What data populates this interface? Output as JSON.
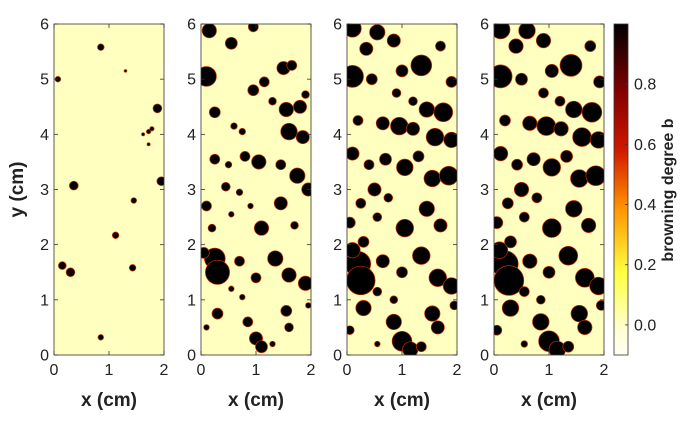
{
  "chart_data": {
    "type": "heatmap",
    "colorbar": {
      "label": "browning degree b",
      "range": [
        -0.1,
        1.0
      ],
      "ticks": [
        0.0,
        0.2,
        0.4,
        0.6,
        0.8
      ],
      "tick_labels": [
        "0.0",
        "0.2",
        "0.4",
        "0.6",
        "0.8"
      ],
      "colors": [
        "#fffff4",
        "#ffff40",
        "#ff9000",
        "#d01800",
        "#800000",
        "#000000"
      ]
    },
    "background_value": 0.0,
    "spot_value": 1.0,
    "panels": [
      {
        "xlabel": "x (cm)",
        "ylabel": "y (cm)",
        "xlim": [
          0,
          2
        ],
        "ylim": [
          0,
          6
        ],
        "xticks": [
          "0",
          "1",
          "2"
        ],
        "yticks": [
          "0",
          "1",
          "2",
          "3",
          "4",
          "5",
          "6"
        ],
        "spots": [
          [
            0.85,
            5.58,
            0.06
          ],
          [
            0.07,
            5.0,
            0.05
          ],
          [
            1.3,
            5.15,
            0.02
          ],
          [
            1.88,
            4.47,
            0.08
          ],
          [
            1.72,
            4.05,
            0.04
          ],
          [
            1.78,
            4.1,
            0.04
          ],
          [
            1.62,
            4.0,
            0.03
          ],
          [
            1.72,
            3.82,
            0.03
          ],
          [
            0.36,
            3.07,
            0.08
          ],
          [
            1.95,
            3.15,
            0.08
          ],
          [
            1.45,
            2.8,
            0.05
          ],
          [
            1.12,
            2.17,
            0.06
          ],
          [
            0.15,
            1.62,
            0.07
          ],
          [
            0.3,
            1.5,
            0.08
          ],
          [
            1.43,
            1.58,
            0.06
          ],
          [
            0.85,
            0.32,
            0.05
          ]
        ]
      },
      {
        "xlabel": "x (cm)",
        "ylabel": "",
        "xlim": [
          0,
          2
        ],
        "ylim": [
          0,
          6
        ],
        "xticks": [
          "0",
          "1",
          "2"
        ],
        "yticks": [
          "0",
          "1",
          "2",
          "3",
          "4",
          "5",
          "6"
        ],
        "spots": [
          [
            0.15,
            5.88,
            0.13
          ],
          [
            0.1,
            5.05,
            0.18
          ],
          [
            0.55,
            5.65,
            0.11
          ],
          [
            0.95,
            5.95,
            0.09
          ],
          [
            1.15,
            4.95,
            0.09
          ],
          [
            1.5,
            5.2,
            0.12
          ],
          [
            1.65,
            5.25,
            0.09
          ],
          [
            1.3,
            4.6,
            0.07
          ],
          [
            1.55,
            4.45,
            0.13
          ],
          [
            1.8,
            4.5,
            0.12
          ],
          [
            1.9,
            4.72,
            0.07
          ],
          [
            1.6,
            4.05,
            0.15
          ],
          [
            1.85,
            3.95,
            0.12
          ],
          [
            0.25,
            4.4,
            0.1
          ],
          [
            0.6,
            4.15,
            0.06
          ],
          [
            0.75,
            4.05,
            0.06
          ],
          [
            0.95,
            4.8,
            0.1
          ],
          [
            0.25,
            3.55,
            0.09
          ],
          [
            0.5,
            3.45,
            0.06
          ],
          [
            0.8,
            3.6,
            0.09
          ],
          [
            1.05,
            3.5,
            0.13
          ],
          [
            1.45,
            3.45,
            0.09
          ],
          [
            1.75,
            3.25,
            0.14
          ],
          [
            1.95,
            3.0,
            0.12
          ],
          [
            0.45,
            3.05,
            0.08
          ],
          [
            0.7,
            2.95,
            0.06
          ],
          [
            0.1,
            2.7,
            0.09
          ],
          [
            0.2,
            2.3,
            0.07
          ],
          [
            0.55,
            2.55,
            0.05
          ],
          [
            0.9,
            2.7,
            0.05
          ],
          [
            1.1,
            2.3,
            0.13
          ],
          [
            1.45,
            2.75,
            0.12
          ],
          [
            1.7,
            2.35,
            0.07
          ],
          [
            0.25,
            1.75,
            0.19
          ],
          [
            0.3,
            1.5,
            0.22
          ],
          [
            0.05,
            1.85,
            0.1
          ],
          [
            0.7,
            1.7,
            0.09
          ],
          [
            1.0,
            1.4,
            0.09
          ],
          [
            1.35,
            1.75,
            0.14
          ],
          [
            1.6,
            1.45,
            0.13
          ],
          [
            1.9,
            1.3,
            0.13
          ],
          [
            0.75,
            1.05,
            0.05
          ],
          [
            0.55,
            1.2,
            0.05
          ],
          [
            0.3,
            0.75,
            0.1
          ],
          [
            0.85,
            0.6,
            0.09
          ],
          [
            1.0,
            0.3,
            0.12
          ],
          [
            1.1,
            0.15,
            0.11
          ],
          [
            1.55,
            0.8,
            0.1
          ],
          [
            1.6,
            0.5,
            0.08
          ],
          [
            1.3,
            0.2,
            0.05
          ],
          [
            0.1,
            0.5,
            0.05
          ],
          [
            1.95,
            0.9,
            0.05
          ]
        ]
      },
      {
        "xlabel": "x (cm)",
        "ylabel": "",
        "xlim": [
          0,
          2
        ],
        "ylim": [
          0,
          6
        ],
        "xticks": [
          "0",
          "1",
          "2"
        ],
        "yticks": [
          "0",
          "1",
          "2",
          "3",
          "4",
          "5",
          "6"
        ],
        "spots": [
          [
            0.1,
            5.92,
            0.16
          ],
          [
            0.35,
            5.55,
            0.12
          ],
          [
            0.55,
            5.85,
            0.14
          ],
          [
            0.85,
            5.7,
            0.12
          ],
          [
            0.1,
            5.05,
            0.2
          ],
          [
            0.45,
            5.0,
            0.1
          ],
          [
            1.0,
            5.15,
            0.11
          ],
          [
            1.35,
            5.25,
            0.19
          ],
          [
            1.7,
            5.6,
            0.09
          ],
          [
            1.9,
            4.95,
            0.1
          ],
          [
            0.9,
            4.75,
            0.08
          ],
          [
            1.2,
            4.6,
            0.08
          ],
          [
            1.45,
            4.45,
            0.14
          ],
          [
            1.75,
            4.4,
            0.17
          ],
          [
            0.65,
            4.2,
            0.12
          ],
          [
            0.95,
            4.15,
            0.16
          ],
          [
            1.2,
            4.1,
            0.12
          ],
          [
            1.6,
            3.95,
            0.16
          ],
          [
            1.9,
            3.9,
            0.14
          ],
          [
            0.2,
            4.25,
            0.09
          ],
          [
            0.1,
            3.65,
            0.12
          ],
          [
            0.4,
            3.45,
            0.09
          ],
          [
            0.7,
            3.55,
            0.11
          ],
          [
            1.05,
            3.4,
            0.15
          ],
          [
            1.3,
            3.6,
            0.1
          ],
          [
            1.55,
            3.2,
            0.15
          ],
          [
            1.85,
            3.25,
            0.17
          ],
          [
            0.5,
            3.0,
            0.12
          ],
          [
            0.75,
            2.85,
            0.08
          ],
          [
            0.25,
            2.75,
            0.09
          ],
          [
            0.05,
            2.4,
            0.1
          ],
          [
            1.05,
            2.3,
            0.16
          ],
          [
            1.45,
            2.65,
            0.14
          ],
          [
            1.7,
            2.35,
            0.12
          ],
          [
            0.55,
            2.5,
            0.08
          ],
          [
            0.3,
            2.05,
            0.1
          ],
          [
            0.2,
            1.65,
            0.23
          ],
          [
            0.25,
            1.35,
            0.26
          ],
          [
            0.1,
            1.9,
            0.14
          ],
          [
            0.65,
            1.7,
            0.12
          ],
          [
            1.0,
            1.5,
            0.1
          ],
          [
            1.35,
            1.8,
            0.16
          ],
          [
            1.65,
            1.4,
            0.16
          ],
          [
            1.9,
            1.25,
            0.15
          ],
          [
            0.55,
            1.15,
            0.08
          ],
          [
            0.85,
            1.0,
            0.07
          ],
          [
            0.3,
            0.85,
            0.14
          ],
          [
            0.85,
            0.6,
            0.14
          ],
          [
            1.0,
            0.25,
            0.18
          ],
          [
            1.15,
            0.1,
            0.14
          ],
          [
            1.55,
            0.75,
            0.14
          ],
          [
            1.65,
            0.5,
            0.12
          ],
          [
            1.35,
            0.15,
            0.09
          ],
          [
            0.05,
            0.45,
            0.08
          ],
          [
            1.95,
            0.9,
            0.08
          ],
          [
            0.55,
            0.2,
            0.05
          ]
        ]
      },
      {
        "xlabel": "x (cm)",
        "ylabel": "",
        "xlim": [
          0,
          2
        ],
        "ylim": [
          0,
          6
        ],
        "xticks": [
          "0",
          "1",
          "2"
        ],
        "yticks": [
          "0",
          "1",
          "2",
          "3",
          "4",
          "5",
          "6"
        ],
        "spots": [
          [
            0.12,
            5.9,
            0.17
          ],
          [
            0.4,
            5.6,
            0.13
          ],
          [
            0.6,
            5.88,
            0.15
          ],
          [
            0.9,
            5.7,
            0.13
          ],
          [
            0.12,
            5.05,
            0.21
          ],
          [
            0.5,
            5.0,
            0.11
          ],
          [
            1.05,
            5.15,
            0.12
          ],
          [
            1.4,
            5.25,
            0.2
          ],
          [
            1.75,
            5.6,
            0.1
          ],
          [
            1.92,
            4.95,
            0.11
          ],
          [
            0.9,
            4.75,
            0.09
          ],
          [
            1.2,
            4.6,
            0.09
          ],
          [
            1.45,
            4.45,
            0.15
          ],
          [
            1.78,
            4.4,
            0.18
          ],
          [
            0.65,
            4.2,
            0.13
          ],
          [
            0.95,
            4.15,
            0.17
          ],
          [
            1.22,
            4.1,
            0.13
          ],
          [
            1.6,
            3.95,
            0.17
          ],
          [
            1.9,
            3.9,
            0.15
          ],
          [
            0.2,
            4.25,
            0.1
          ],
          [
            0.12,
            3.65,
            0.13
          ],
          [
            0.42,
            3.45,
            0.1
          ],
          [
            0.72,
            3.55,
            0.12
          ],
          [
            1.05,
            3.4,
            0.16
          ],
          [
            1.32,
            3.6,
            0.11
          ],
          [
            1.55,
            3.2,
            0.16
          ],
          [
            1.85,
            3.25,
            0.18
          ],
          [
            0.5,
            3.0,
            0.13
          ],
          [
            0.78,
            2.85,
            0.09
          ],
          [
            0.25,
            2.75,
            0.1
          ],
          [
            0.05,
            2.4,
            0.11
          ],
          [
            1.05,
            2.3,
            0.17
          ],
          [
            1.45,
            2.65,
            0.15
          ],
          [
            1.72,
            2.35,
            0.13
          ],
          [
            0.55,
            2.5,
            0.09
          ],
          [
            0.3,
            2.05,
            0.11
          ],
          [
            0.2,
            1.65,
            0.24
          ],
          [
            0.27,
            1.35,
            0.27
          ],
          [
            0.1,
            1.9,
            0.15
          ],
          [
            0.65,
            1.7,
            0.13
          ],
          [
            1.0,
            1.5,
            0.11
          ],
          [
            1.35,
            1.8,
            0.17
          ],
          [
            1.65,
            1.4,
            0.17
          ],
          [
            1.9,
            1.25,
            0.16
          ],
          [
            0.55,
            1.15,
            0.09
          ],
          [
            0.85,
            1.0,
            0.08
          ],
          [
            0.3,
            0.85,
            0.15
          ],
          [
            0.85,
            0.6,
            0.15
          ],
          [
            1.0,
            0.25,
            0.19
          ],
          [
            1.15,
            0.1,
            0.15
          ],
          [
            1.55,
            0.75,
            0.15
          ],
          [
            1.65,
            0.5,
            0.13
          ],
          [
            1.35,
            0.15,
            0.1
          ],
          [
            0.05,
            0.45,
            0.09
          ],
          [
            1.95,
            0.9,
            0.09
          ],
          [
            0.55,
            0.2,
            0.06
          ]
        ]
      }
    ]
  }
}
